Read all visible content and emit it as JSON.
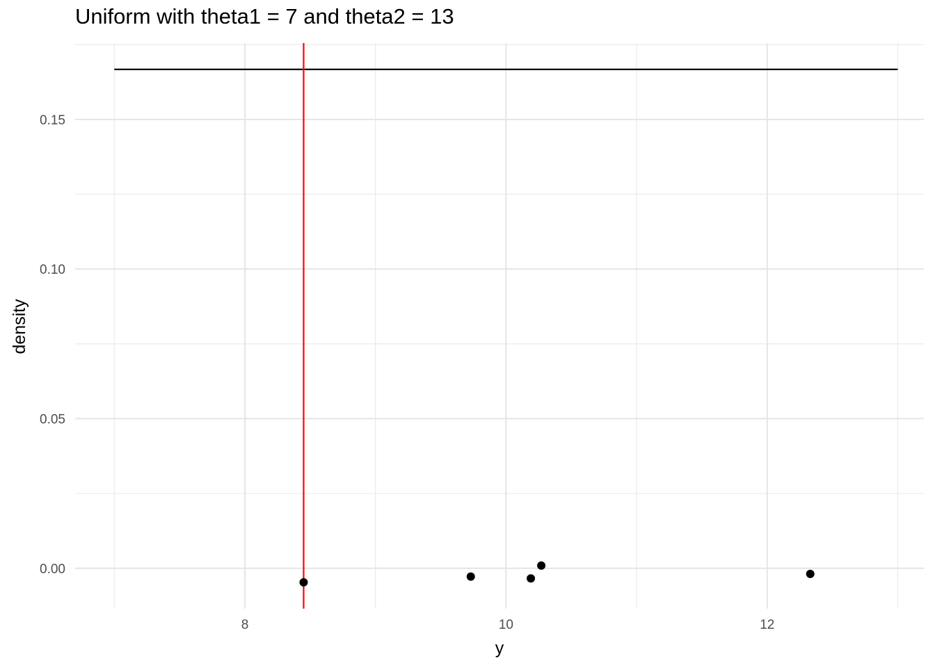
{
  "chart_data": {
    "type": "scatter",
    "title": "Uniform with theta1 = 7 and theta2 = 13",
    "xlabel": "y",
    "ylabel": "density",
    "xlim": [
      6.7,
      13.2
    ],
    "ylim": [
      -0.0135,
      0.1755
    ],
    "x_ticks": [
      8,
      10,
      12
    ],
    "x_tick_labels": [
      "8",
      "10",
      "12"
    ],
    "x_minor_ticks": [
      7,
      9,
      11,
      13
    ],
    "y_ticks": [
      0.0,
      0.05,
      0.1,
      0.15
    ],
    "y_tick_labels": [
      "0.00",
      "0.05",
      "0.10",
      "0.15"
    ],
    "y_minor_ticks": [
      0.025,
      0.075,
      0.125,
      0.175
    ],
    "grid": true,
    "density_line": {
      "x": [
        7,
        13
      ],
      "y": [
        0.1667,
        0.1667
      ],
      "color": "#000000"
    },
    "vline": {
      "x": 8.45,
      "color": "#ff0000"
    },
    "points": {
      "x": [
        8.45,
        9.73,
        10.19,
        10.27,
        12.33
      ],
      "y": [
        -0.0047,
        -0.0028,
        -0.0034,
        0.0009,
        -0.0019
      ],
      "color": "#000000"
    }
  }
}
